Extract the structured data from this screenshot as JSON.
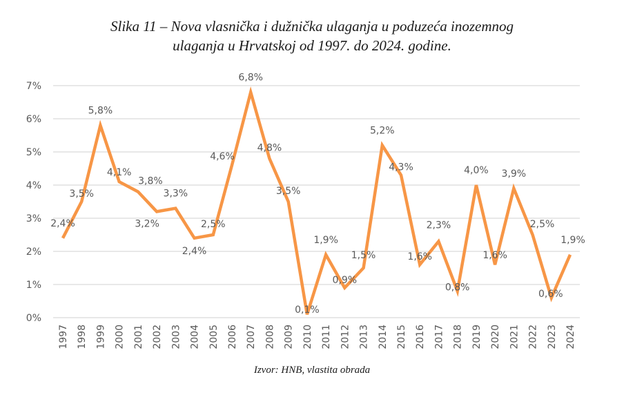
{
  "title_lines": [
    "Slika 11 – Nova vlasnička i dužnička ulaganja u poduzeća inozemnog",
    "ulaganja u Hrvatskoj od 1997. do 2024. godine."
  ],
  "source": "Izvor: HNB, vlastita obrada",
  "colors": {
    "line": "#F79646",
    "grid": "#D9D9D9",
    "text": "#595959"
  },
  "chart_data": {
    "type": "line",
    "title": "Slika 11 – Nova vlasnička i dužnička ulaganja u poduzeća inozemnog ulaganja u Hrvatskoj od 1997. do 2024. godine.",
    "xlabel": "",
    "ylabel": "",
    "ylim": [
      0,
      7
    ],
    "yticks": [
      "0%",
      "1%",
      "2%",
      "3%",
      "4%",
      "5%",
      "6%",
      "7%"
    ],
    "grid": true,
    "legend": "none",
    "categories": [
      "1997",
      "1998",
      "1999",
      "2000",
      "2001",
      "2002",
      "2003",
      "2004",
      "2005",
      "2006",
      "2007",
      "2008",
      "2009",
      "2010",
      "2011",
      "2012",
      "2013",
      "2014",
      "2015",
      "2016",
      "2017",
      "2018",
      "2019",
      "2020",
      "2021",
      "2022",
      "2023",
      "2024"
    ],
    "series": [
      {
        "name": "Nova vlasnička i dužnička ulaganja",
        "values": [
          2.4,
          3.5,
          5.8,
          4.1,
          3.8,
          3.2,
          3.3,
          2.4,
          2.5,
          4.6,
          6.8,
          4.8,
          3.5,
          0.1,
          1.9,
          0.9,
          1.5,
          5.2,
          4.3,
          1.6,
          2.3,
          0.8,
          4.0,
          1.6,
          3.9,
          2.5,
          0.6,
          1.9
        ],
        "labels": [
          "2,4%",
          "3,5%",
          "5,8%",
          "4,1%",
          "3,8%",
          "3,2%",
          "3,3%",
          "2,4%",
          "2,5%",
          "4,6%",
          "6,8%",
          "4,8%",
          "3,5%",
          "0,1%",
          "1,9%",
          "0,9%",
          "1,5%",
          "5,2%",
          "4,3%",
          "1,6%",
          "2,3%",
          "0,8%",
          "4,0%",
          "1,6%",
          "3,9%",
          "2,5%",
          "0,6%",
          "1,9%"
        ]
      }
    ]
  }
}
